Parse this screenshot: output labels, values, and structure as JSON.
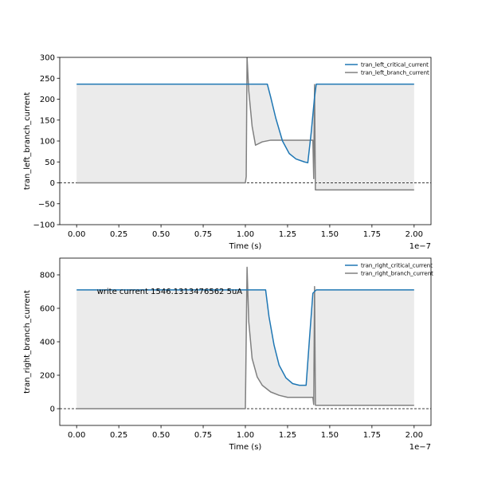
{
  "chart_data": [
    {
      "type": "line",
      "ylabel": "tran_left_branch_current",
      "xlabel": "Time (s)",
      "x_offset_label": "1e−7",
      "xlim": [
        -0.1,
        2.1
      ],
      "ylim": [
        -100,
        300
      ],
      "xticks": [
        0.0,
        0.25,
        0.5,
        0.75,
        1.0,
        1.25,
        1.5,
        1.75,
        2.0
      ],
      "xtick_labels": [
        "0.00",
        "0.25",
        "0.50",
        "0.75",
        "1.00",
        "1.25",
        "1.50",
        "1.75",
        "2.00"
      ],
      "yticks": [
        -100,
        -50,
        0,
        50,
        100,
        150,
        200,
        250,
        300
      ],
      "ytick_labels": [
        "−100",
        "−50",
        "0",
        "50",
        "100",
        "150",
        "200",
        "250",
        "300"
      ],
      "zero_line": true,
      "grid": false,
      "legend_position": "top-right",
      "series": [
        {
          "name": "tran_left_critical_current",
          "color": "#1f77b4",
          "x": [
            0.0,
            1.0,
            1.13,
            1.15,
            1.18,
            1.22,
            1.26,
            1.3,
            1.35,
            1.37,
            1.39,
            1.41,
            1.42,
            2.0
          ],
          "y": [
            236,
            236,
            236,
            205,
            155,
            100,
            70,
            57,
            50,
            48,
            120,
            205,
            236,
            236
          ]
        },
        {
          "name": "tran_left_branch_current",
          "color": "#808080",
          "x": [
            0.0,
            1.0,
            1.005,
            1.01,
            1.02,
            1.04,
            1.06,
            1.1,
            1.15,
            1.25,
            1.4,
            1.405,
            1.41,
            1.415,
            2.0
          ],
          "y": [
            0,
            0,
            15,
            300,
            220,
            135,
            90,
            98,
            102,
            102,
            102,
            10,
            235,
            -17,
            -17
          ]
        }
      ],
      "annotations": []
    },
    {
      "type": "line",
      "ylabel": "tran_right_branch_current",
      "xlabel": "Time (s)",
      "x_offset_label": "1e−7",
      "xlim": [
        -0.1,
        2.1
      ],
      "ylim": [
        -100,
        900
      ],
      "xticks": [
        0.0,
        0.25,
        0.5,
        0.75,
        1.0,
        1.25,
        1.5,
        1.75,
        2.0
      ],
      "xtick_labels": [
        "0.00",
        "0.25",
        "0.50",
        "0.75",
        "1.00",
        "1.25",
        "1.50",
        "1.75",
        "2.00"
      ],
      "yticks": [
        0,
        200,
        400,
        600,
        800
      ],
      "ytick_labels": [
        "0",
        "200",
        "400",
        "600",
        "800"
      ],
      "zero_line": true,
      "grid": false,
      "legend_position": "top-right",
      "series": [
        {
          "name": "tran_right_critical_current",
          "color": "#1f77b4",
          "x": [
            0.0,
            1.0,
            1.12,
            1.14,
            1.17,
            1.2,
            1.24,
            1.28,
            1.32,
            1.36,
            1.38,
            1.4,
            1.42,
            2.0
          ],
          "y": [
            710,
            710,
            710,
            550,
            380,
            260,
            185,
            150,
            140,
            140,
            420,
            690,
            710,
            710
          ]
        },
        {
          "name": "tran_right_branch_current",
          "color": "#808080",
          "x": [
            0.0,
            1.0,
            1.01,
            1.02,
            1.04,
            1.07,
            1.1,
            1.15,
            1.2,
            1.25,
            1.4,
            1.405,
            1.41,
            1.415,
            2.0
          ],
          "y": [
            0,
            0,
            845,
            520,
            300,
            190,
            140,
            100,
            80,
            68,
            68,
            25,
            730,
            20,
            20
          ]
        }
      ],
      "annotations": [
        {
          "text": "write current 1546.1313476562 5uA",
          "x": 0.12,
          "y": 700
        }
      ]
    }
  ]
}
